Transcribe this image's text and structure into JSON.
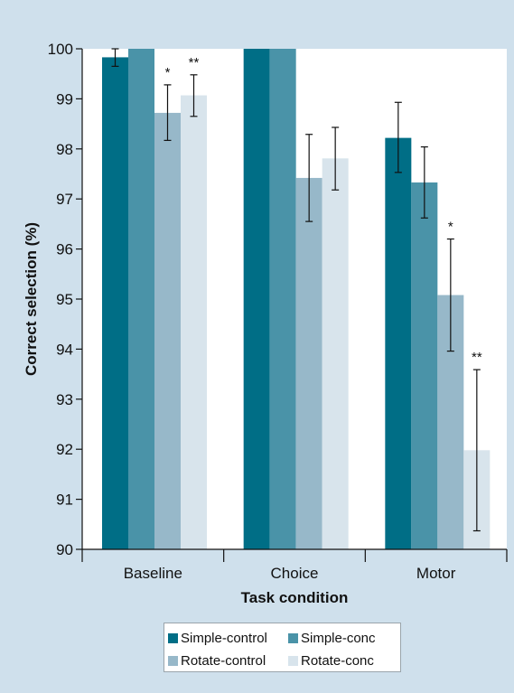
{
  "chart_data": {
    "type": "bar",
    "title": "",
    "xlabel": "Task condition",
    "ylabel": "Correct selection (%)",
    "ylim": [
      90,
      100
    ],
    "yticks": [
      90,
      91,
      92,
      93,
      94,
      95,
      96,
      97,
      98,
      99,
      100
    ],
    "categories": [
      "Baseline",
      "Choice",
      "Motor"
    ],
    "series": [
      {
        "name": "Simple-control",
        "color": "#006e86",
        "values": [
          99.83,
          100.0,
          98.22
        ],
        "error_low": [
          99.65,
          100.0,
          97.53
        ],
        "error_high": [
          100.0,
          100.0,
          98.93
        ]
      },
      {
        "name": "Simple-conc",
        "color": "#4a93a8",
        "values": [
          100.0,
          100.0,
          97.33
        ],
        "error_low": [
          100.0,
          100.0,
          96.62
        ],
        "error_high": [
          100.0,
          100.0,
          98.04
        ]
      },
      {
        "name": "Rotate-control",
        "color": "#97b8c9",
        "values": [
          98.72,
          97.42,
          95.08
        ],
        "error_low": [
          98.17,
          96.55,
          93.96
        ],
        "error_high": [
          99.28,
          98.29,
          96.2
        ]
      },
      {
        "name": "Rotate-conc",
        "color": "#d8e4ec",
        "values": [
          99.07,
          97.81,
          91.98
        ],
        "error_low": [
          98.65,
          97.18,
          90.37
        ],
        "error_high": [
          99.48,
          98.43,
          93.59
        ]
      }
    ],
    "annotations": [
      {
        "category": "Baseline",
        "series": "Rotate-control",
        "text": "*"
      },
      {
        "category": "Baseline",
        "series": "Rotate-conc",
        "text": "**"
      },
      {
        "category": "Motor",
        "series": "Rotate-control",
        "text": "*"
      },
      {
        "category": "Motor",
        "series": "Rotate-conc",
        "text": "**"
      }
    ],
    "grid": false,
    "legend_position": "bottom-center",
    "plot_background": "#ffffff"
  }
}
